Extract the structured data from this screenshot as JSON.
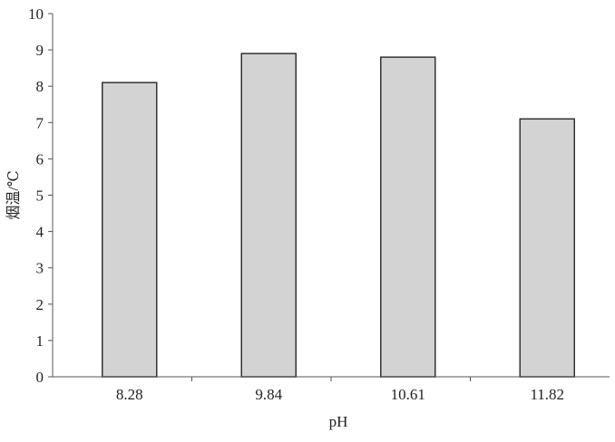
{
  "chart_data": {
    "type": "bar",
    "categories": [
      "8.28",
      "9.84",
      "10.61",
      "11.82"
    ],
    "values": [
      8.1,
      8.9,
      8.8,
      7.1
    ],
    "title": "",
    "xlabel": "pH",
    "ylabel": "烟温/℃",
    "ylim": [
      0,
      10
    ],
    "yticks": [
      "0",
      "1",
      "2",
      "3",
      "4",
      "5",
      "6",
      "7",
      "8",
      "9",
      "10"
    ],
    "grid": false,
    "bar_color": "#d3d3d3",
    "bar_edge_color": "#333333"
  }
}
